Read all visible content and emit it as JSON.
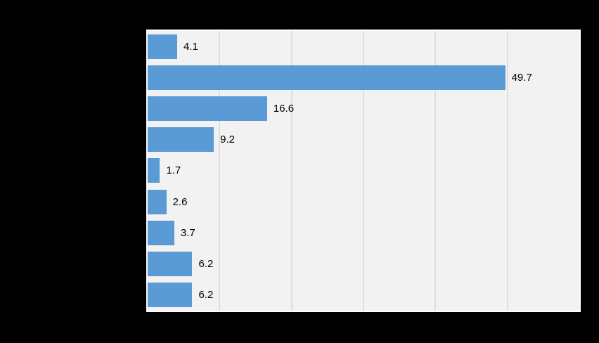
{
  "page": {
    "background_color": "#000000"
  },
  "chart_data": {
    "type": "bar",
    "orientation": "horizontal",
    "title": "",
    "xlabel": "",
    "ylabel": "",
    "categories": [
      "",
      "",
      "",
      "",
      "",
      "",
      "",
      "",
      ""
    ],
    "values": [
      4.1,
      49.7,
      16.6,
      9.2,
      1.7,
      2.6,
      3.7,
      6.2,
      6.2
    ],
    "data_labels": [
      "4.1",
      "49.7",
      "16.6",
      "9.2",
      "1.7",
      "2.6",
      "3.7",
      "6.2",
      "6.2"
    ],
    "data_labels_visible": true,
    "x_axis": {
      "min": 0,
      "max": 60,
      "gridline_step": 10,
      "tick_labels_visible": false
    },
    "grid": true,
    "legend": false,
    "colors": {
      "bar": "#5B9BD5",
      "plot_background": "#F2F2F2",
      "plot_border": "#FFFFFF",
      "gridline": "#DEDEDE",
      "label_text": "#000000",
      "page_background": "#000000"
    }
  }
}
